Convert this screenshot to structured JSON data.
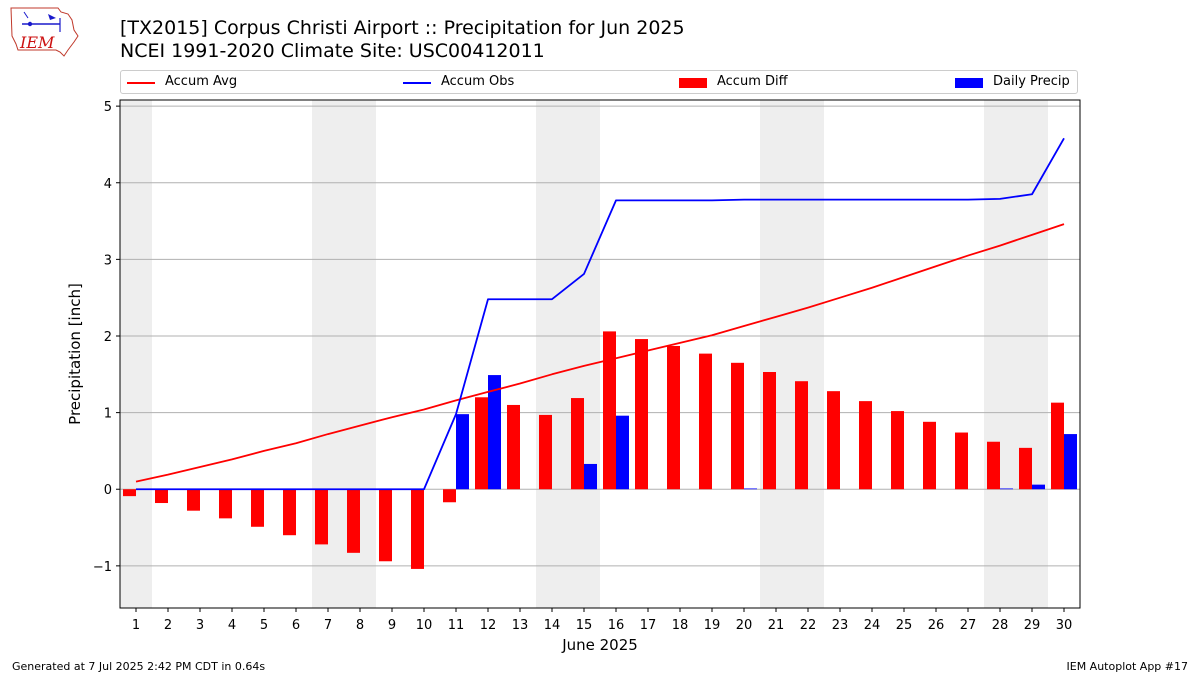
{
  "header": {
    "logo_text": "IEM",
    "title_line1": "[TX2015] Corpus Christi Airport :: Precipitation for Jun 2025",
    "title_line2": "NCEI 1991-2020 Climate Site: USC00412011"
  },
  "footer": {
    "generated": "Generated at 7 Jul 2025 2:42 PM CDT in 0.64s",
    "app": "IEM Autoplot App #17"
  },
  "colors": {
    "accum_avg": "#ff0000",
    "accum_obs": "#0000ff",
    "accum_diff": "#ff0000",
    "daily_precip": "#0000ff",
    "weekend_shade": "#eeeeee",
    "grid": "#b0b0b0"
  },
  "chart_data": {
    "type": "bar",
    "title": "[TX2015] Corpus Christi Airport :: Precipitation for Jun 2025",
    "subtitle": "NCEI 1991-2020 Climate Site: USC00412011",
    "xlabel": "June 2025",
    "ylabel": "Precipitation [inch]",
    "x": [
      1,
      2,
      3,
      4,
      5,
      6,
      7,
      8,
      9,
      10,
      11,
      12,
      13,
      14,
      15,
      16,
      17,
      18,
      19,
      20,
      21,
      22,
      23,
      24,
      25,
      26,
      27,
      28,
      29,
      30
    ],
    "xlim": [
      0.5,
      30.5
    ],
    "ylim": [
      -1.55,
      5.08
    ],
    "yticks": [
      -1,
      0,
      1,
      2,
      3,
      4,
      5
    ],
    "ytick_labels": [
      "−1",
      "0",
      "1",
      "2",
      "3",
      "4",
      "5"
    ],
    "grid": "horizontal",
    "legend_position": "top",
    "shaded_x_ranges": [
      [
        0.5,
        1.5
      ],
      [
        6.5,
        8.5
      ],
      [
        13.5,
        15.5
      ],
      [
        20.5,
        22.5
      ],
      [
        27.5,
        29.5
      ]
    ],
    "series": [
      {
        "name": "Accum Avg",
        "kind": "line",
        "color": "#ff0000",
        "values": [
          0.1,
          0.19,
          0.29,
          0.39,
          0.5,
          0.6,
          0.72,
          0.83,
          0.94,
          1.04,
          1.16,
          1.27,
          1.38,
          1.5,
          1.61,
          1.71,
          1.81,
          1.91,
          2.01,
          2.13,
          2.25,
          2.37,
          2.5,
          2.63,
          2.77,
          2.91,
          3.05,
          3.18,
          3.32,
          3.46
        ]
      },
      {
        "name": "Accum Obs",
        "kind": "line",
        "color": "#0000ff",
        "values": [
          0,
          0,
          0,
          0,
          0,
          0,
          0,
          0,
          0,
          0,
          0.98,
          2.48,
          2.48,
          2.48,
          2.81,
          3.77,
          3.77,
          3.77,
          3.77,
          3.78,
          3.78,
          3.78,
          3.78,
          3.78,
          3.78,
          3.78,
          3.78,
          3.79,
          3.85,
          4.58
        ]
      },
      {
        "name": "Accum Diff",
        "kind": "bar",
        "color": "#ff0000",
        "values": [
          -0.09,
          -0.18,
          -0.28,
          -0.38,
          -0.49,
          -0.6,
          -0.72,
          -0.83,
          -0.94,
          -1.04,
          -0.17,
          1.2,
          1.1,
          0.97,
          1.19,
          2.06,
          1.96,
          1.87,
          1.77,
          1.65,
          1.53,
          1.41,
          1.28,
          1.15,
          1.02,
          0.88,
          0.74,
          0.62,
          0.54,
          1.13
        ]
      },
      {
        "name": "Daily Precip",
        "kind": "bar",
        "color": "#0000ff",
        "values": [
          0,
          0,
          0,
          0,
          0,
          0,
          0,
          0,
          0,
          0,
          0.98,
          1.49,
          0,
          0,
          0.33,
          0.96,
          0,
          0,
          0,
          0.01,
          0,
          0,
          0,
          0,
          0,
          0,
          0,
          0.01,
          0.06,
          0.72
        ]
      }
    ]
  }
}
